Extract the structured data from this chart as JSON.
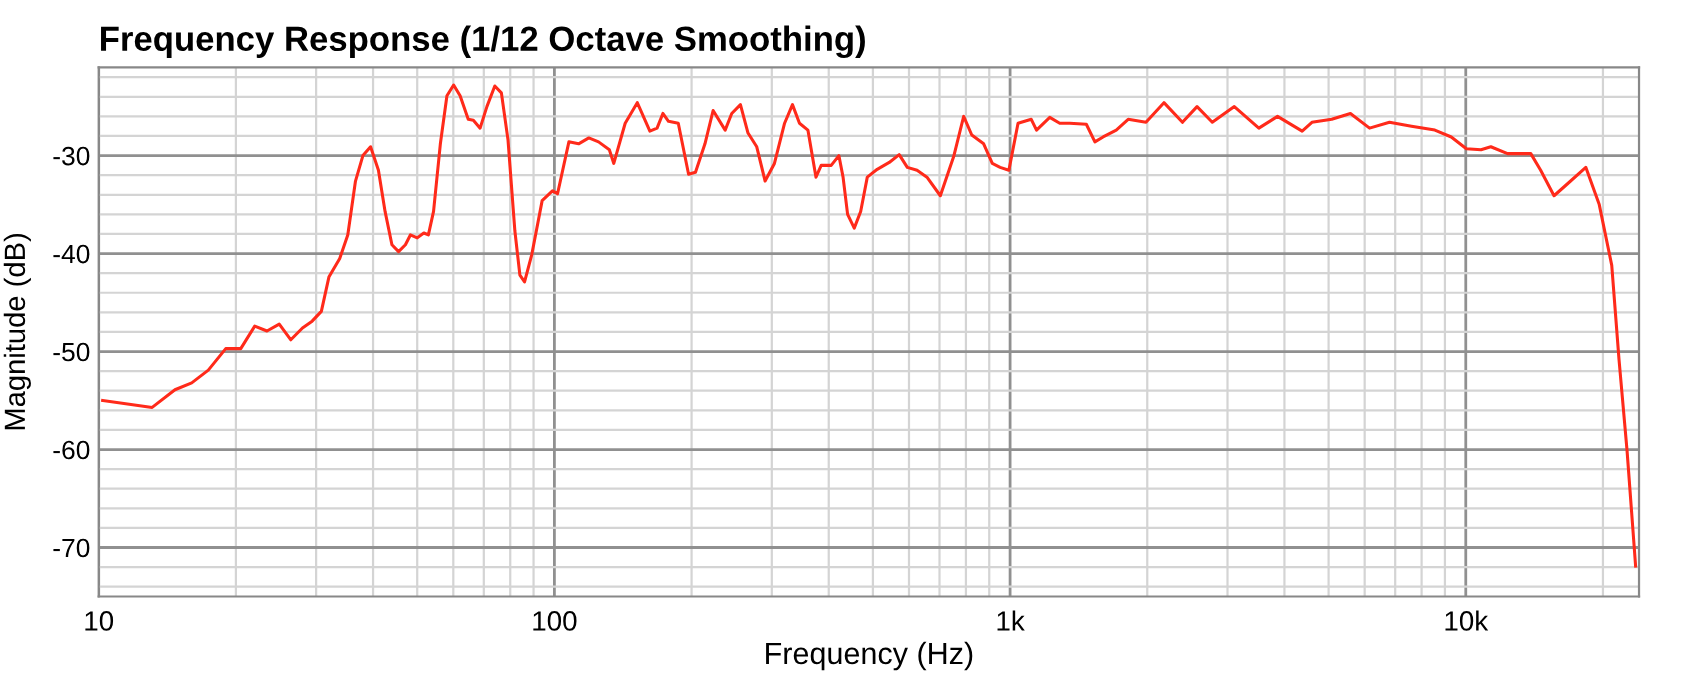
{
  "chart_data": {
    "type": "line",
    "title": "Frequency Response (1/12 Octave Smoothing)",
    "xlabel": "Frequency (Hz)",
    "ylabel": "Magnitude (dB)",
    "log": "x",
    "grid": true,
    "marker": "none",
    "line_style": "solid",
    "xlim": [
      10,
      24000
    ],
    "xticks": [
      10,
      100,
      {
        "value": 1000,
        "label": "1k"
      },
      {
        "value": 10000,
        "label": "10k"
      }
    ],
    "ylim": [
      -75,
      -21
    ],
    "yticks": [
      -30,
      -40,
      -50,
      -60,
      -70
    ],
    "x": [
      10.2,
      13.1,
      14.7,
      16.0,
      17.4,
      19.0,
      20.5,
      22.0,
      23.4,
      24.9,
      26.4,
      28.0,
      29.4,
      30.8,
      32.0,
      33.8,
      35.2,
      36.6,
      38.0,
      39.5,
      41.1,
      42.5,
      44.0,
      45.5,
      47.1,
      48.3,
      50.0,
      51.7,
      52.9,
      54.3,
      56.2,
      58.1,
      60.1,
      62.1,
      64.7,
      66.4,
      68.7,
      71.1,
      74.0,
      76.5,
      79.1,
      81.9,
      84.0,
      86.0,
      89.2,
      94,
      99,
      101.6,
      107.6,
      113,
      119,
      125,
      132,
      135,
      143,
      152,
      162,
      168,
      173,
      178,
      187,
      197,
      204,
      214,
      223,
      237,
      245,
      256,
      266,
      278,
      290,
      304,
      320,
      333,
      345,
      360,
      375,
      385,
      405,
      421,
      430,
      440,
      455,
      470,
      486,
      511,
      543,
      571,
      595,
      625,
      657,
      703,
      752,
      791,
      824,
      875,
      914,
      951,
      994,
      1041,
      1113,
      1143,
      1222,
      1285,
      1352,
      1470,
      1535,
      1600,
      1710,
      1816,
      1987,
      2176,
      2389,
      2572,
      2778,
      3105,
      3515,
      3863,
      4375,
      4596,
      5080,
      5583,
      6150,
      6801,
      7601,
      8553,
      9294,
      10030,
      10800,
      11350,
      12350,
      13890,
      14600,
      15620,
      16700,
      18340,
      19630,
      20910,
      21690,
      22590,
      23590
    ],
    "series": [
      {
        "color": "#ff2a1a",
        "values": [
          -55.0,
          -55.7,
          -53.9,
          -53.2,
          -51.9,
          -49.7,
          -49.7,
          -47.4,
          -47.9,
          -47.2,
          -48.8,
          -47.6,
          -46.9,
          -45.9,
          -42.4,
          -40.5,
          -38.1,
          -32.6,
          -30.0,
          -29.1,
          -31.5,
          -35.7,
          -39.1,
          -39.8,
          -39.1,
          -38.1,
          -38.4,
          -37.9,
          -38.1,
          -35.7,
          -28.8,
          -23.9,
          -22.8,
          -23.9,
          -26.3,
          -26.4,
          -27.2,
          -25.0,
          -22.9,
          -23.6,
          -28.4,
          -37.7,
          -42.2,
          -42.9,
          -40.1,
          -34.6,
          -33.6,
          -33.9,
          -28.6,
          -28.8,
          -28.2,
          -28.6,
          -29.4,
          -30.8,
          -26.7,
          -24.6,
          -27.5,
          -27.2,
          -25.7,
          -26.5,
          -26.7,
          -31.9,
          -31.7,
          -28.8,
          -25.4,
          -27.4,
          -25.7,
          -24.8,
          -27.7,
          -29.1,
          -32.6,
          -30.8,
          -26.7,
          -24.8,
          -26.7,
          -27.4,
          -32.2,
          -31.0,
          -31.0,
          -30.0,
          -32.2,
          -36.0,
          -37.4,
          -35.7,
          -32.2,
          -31.4,
          -30.7,
          -29.9,
          -31.2,
          -31.5,
          -32.2,
          -34.1,
          -30.1,
          -26.0,
          -27.9,
          -28.8,
          -30.8,
          -31.2,
          -31.5,
          -26.7,
          -26.3,
          -27.4,
          -26.1,
          -26.7,
          -26.7,
          -26.8,
          -28.6,
          -28.1,
          -27.4,
          -26.3,
          -26.6,
          -24.6,
          -26.6,
          -25.0,
          -26.6,
          -25.0,
          -27.2,
          -26.0,
          -27.5,
          -26.6,
          -26.3,
          -25.7,
          -27.2,
          -26.6,
          -27.0,
          -27.4,
          -28.1,
          -29.3,
          -29.4,
          -29.1,
          -29.8,
          -29.8,
          -31.5,
          -34.1,
          -32.9,
          -31.2,
          -35.0,
          -41.2,
          -50.8,
          -60.1,
          -71.9
        ]
      }
    ]
  }
}
